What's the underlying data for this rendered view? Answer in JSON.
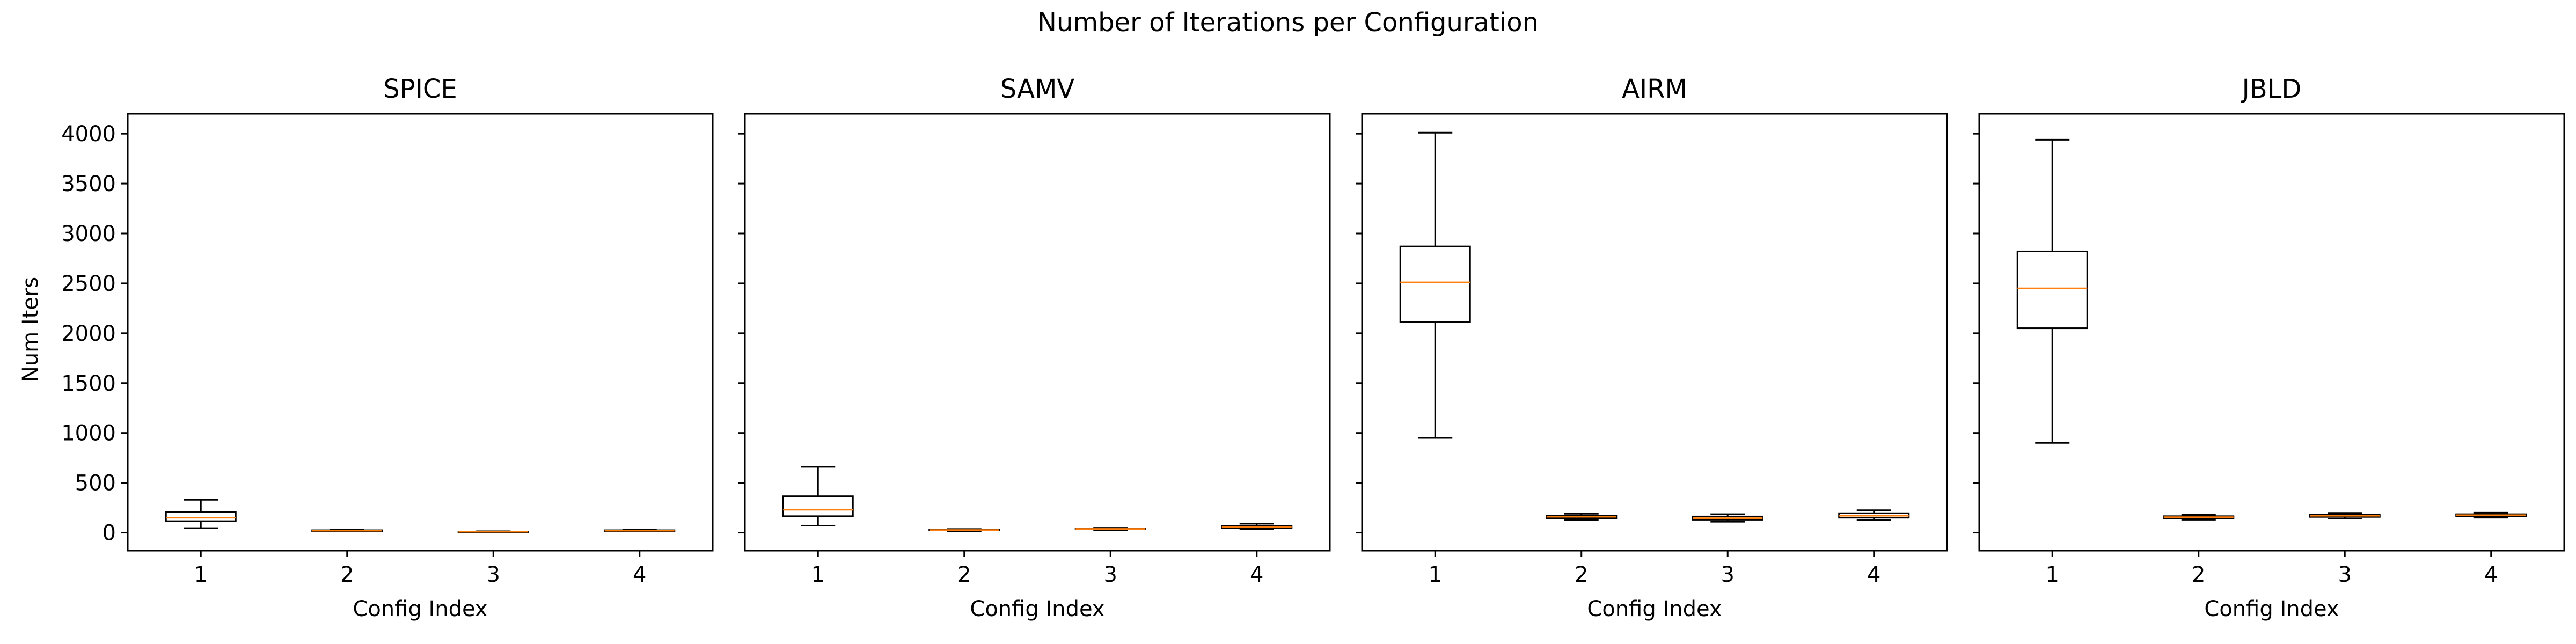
{
  "figure": {
    "title": "Number of Iterations per Configuration"
  },
  "chart_data": {
    "type": "box",
    "shared_y": true,
    "ylabel": "Num Iters",
    "xlabel": "Config Index",
    "ylim": [
      -180,
      4200
    ],
    "yticks": [
      0,
      500,
      1000,
      1500,
      2000,
      2500,
      3000,
      3500,
      4000
    ],
    "categories": [
      "1",
      "2",
      "3",
      "4"
    ],
    "colors": {
      "median": "#ff7f0e",
      "box": "#000000"
    },
    "panels": [
      {
        "title": "SPICE",
        "boxes": [
          {
            "category": "1",
            "whislo": 45,
            "q1": 115,
            "median": 150,
            "q3": 205,
            "whishi": 330
          },
          {
            "category": "2",
            "whislo": 12,
            "q1": 16,
            "median": 20,
            "q3": 24,
            "whishi": 30
          },
          {
            "category": "3",
            "whislo": 4,
            "q1": 7,
            "median": 9,
            "q3": 11,
            "whishi": 14
          },
          {
            "category": "4",
            "whislo": 12,
            "q1": 16,
            "median": 20,
            "q3": 24,
            "whishi": 30
          }
        ]
      },
      {
        "title": "SAMV",
        "boxes": [
          {
            "category": "1",
            "whislo": 70,
            "q1": 165,
            "median": 230,
            "q3": 365,
            "whishi": 660
          },
          {
            "category": "2",
            "whislo": 16,
            "q1": 22,
            "median": 26,
            "q3": 30,
            "whishi": 36
          },
          {
            "category": "3",
            "whislo": 26,
            "q1": 33,
            "median": 37,
            "q3": 42,
            "whishi": 48
          },
          {
            "category": "4",
            "whislo": 35,
            "q1": 48,
            "median": 58,
            "q3": 68,
            "whishi": 90
          }
        ]
      },
      {
        "title": "AIRM",
        "boxes": [
          {
            "category": "1",
            "whislo": 950,
            "q1": 2110,
            "median": 2510,
            "q3": 2870,
            "whishi": 4010
          },
          {
            "category": "2",
            "whislo": 125,
            "q1": 145,
            "median": 160,
            "q3": 172,
            "whishi": 190
          },
          {
            "category": "3",
            "whislo": 110,
            "q1": 130,
            "median": 145,
            "q3": 162,
            "whishi": 185
          },
          {
            "category": "4",
            "whislo": 125,
            "q1": 150,
            "median": 170,
            "q3": 195,
            "whishi": 225
          }
        ]
      },
      {
        "title": "JBLD",
        "boxes": [
          {
            "category": "1",
            "whislo": 900,
            "q1": 2050,
            "median": 2450,
            "q3": 2820,
            "whishi": 3940
          },
          {
            "category": "2",
            "whislo": 130,
            "q1": 145,
            "median": 155,
            "q3": 165,
            "whishi": 180
          },
          {
            "category": "3",
            "whislo": 140,
            "q1": 158,
            "median": 170,
            "q3": 182,
            "whishi": 198
          },
          {
            "category": "4",
            "whislo": 150,
            "q1": 165,
            "median": 175,
            "q3": 185,
            "whishi": 200
          }
        ]
      }
    ]
  }
}
